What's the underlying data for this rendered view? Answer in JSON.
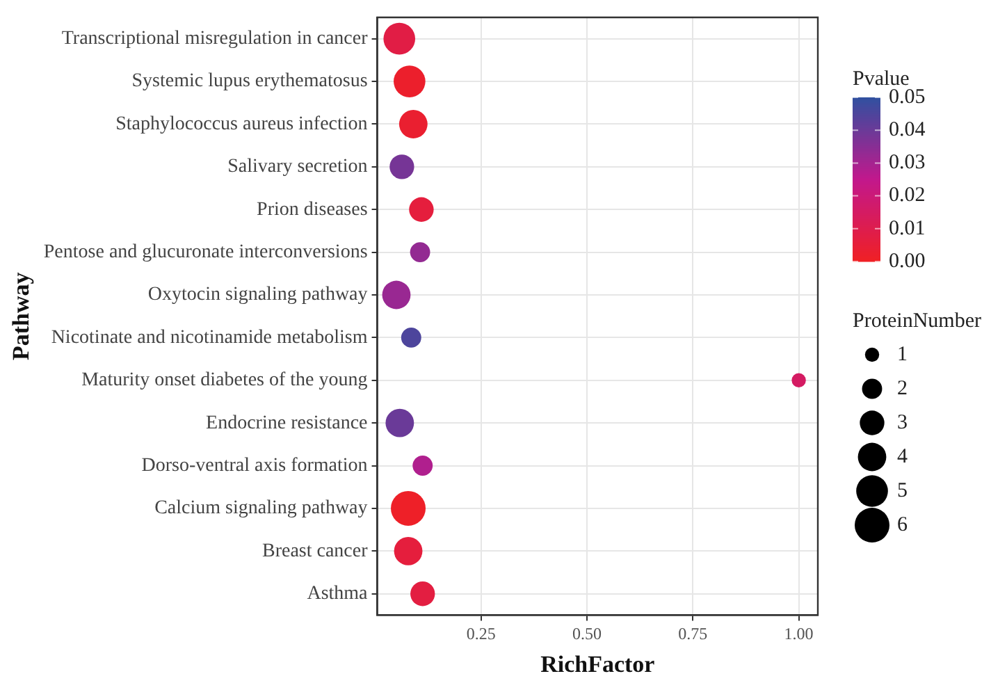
{
  "chart_data": {
    "type": "bubble",
    "categories": [
      "Transcriptional misregulation in cancer",
      "Systemic lupus erythematosus",
      "Staphylococcus aureus infection",
      "Salivary secretion",
      "Prion diseases",
      "Pentose and glucuronate interconversions",
      "Oxytocin signaling pathway",
      "Nicotinate and nicotinamide metabolism",
      "Maturity onset diabetes of the young",
      "Endocrine resistance",
      "Dorso-ventral axis formation",
      "Calcium signaling pathway",
      "Breast cancer",
      "Asthma"
    ],
    "orientation": "horizontal",
    "values": [
      0.057,
      0.081,
      0.09,
      0.063,
      0.109,
      0.106,
      0.05,
      0.085,
      1.0,
      0.058,
      0.112,
      0.078,
      0.078,
      0.112
    ],
    "sizes": [
      5,
      5,
      4,
      3,
      3,
      2,
      4,
      2,
      1,
      4,
      2,
      6,
      4,
      3
    ],
    "cvalues": [
      0.008,
      0.002,
      0.003,
      0.038,
      0.006,
      0.033,
      0.032,
      0.045,
      0.015,
      0.04,
      0.028,
      0.001,
      0.006,
      0.007
    ],
    "xlabel": "RichFactor",
    "ylabel": "Pathway",
    "xlim": [
      0.005,
      1.045
    ],
    "xticks": [
      0.25,
      {
        "value": 0.5,
        "label": "0.50"
      },
      0.75,
      {
        "value": 1.0,
        "label": "1.00"
      }
    ],
    "clabel": "Pvalue",
    "clim": [
      0,
      0.05
    ],
    "cticks": [
      {
        "value": 0,
        "label": "0.00"
      },
      0.01,
      0.02,
      0.03,
      0.04,
      0.05
    ],
    "legend_title": "ProteinNumber",
    "size_legend": [
      1,
      2,
      3,
      4,
      5,
      6
    ],
    "grid": true
  }
}
